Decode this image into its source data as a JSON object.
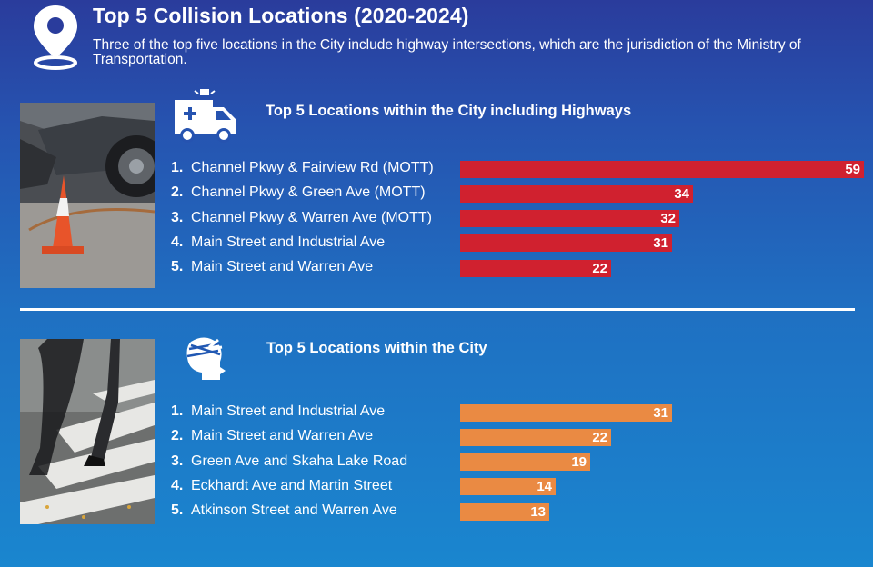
{
  "header": {
    "title": "Top 5 Collision Locations (2020-2024)",
    "subtitle": "Three of the top five locations in the City include highway intersections, which are the jurisdiction of the Ministry of Transportation."
  },
  "icons": {
    "header": "location-pin-icon",
    "section1": "ambulance-icon",
    "section2": "injured-head-icon"
  },
  "colors": {
    "highway_bars": "#d0212f",
    "city_bars": "#ea8a43"
  },
  "chart_data": [
    {
      "type": "bar",
      "orientation": "horizontal",
      "title": "Top 5 Locations within the City including Highways",
      "ranks": [
        "1.",
        "2.",
        "3.",
        "4.",
        "5."
      ],
      "categories": [
        "Channel Pkwy & Fairview Rd (MOTT)",
        "Channel Pkwy & Green Ave (MOTT)",
        "Channel Pkwy & Warren Ave (MOTT)",
        "Main Street and Industrial Ave",
        "Main Street and Warren Ave"
      ],
      "values": [
        59,
        34,
        32,
        31,
        22
      ],
      "data_labels": [
        "59",
        "34",
        "32",
        "31",
        "22"
      ],
      "color": "#d0212f"
    },
    {
      "type": "bar",
      "orientation": "horizontal",
      "title": "Top 5 Locations within the City",
      "ranks": [
        "1.",
        "2.",
        "3.",
        "4.",
        "5."
      ],
      "categories": [
        "Main Street and Industrial Ave",
        "Main Street and Warren Ave",
        "Green Ave and Skaha Lake Road",
        "Eckhardt Ave and Martin Street",
        "Atkinson Street and Warren Ave"
      ],
      "values": [
        31,
        22,
        19,
        14,
        13
      ],
      "data_labels": [
        "31",
        "22",
        "19",
        "14",
        "13"
      ],
      "color": "#ea8a43"
    }
  ]
}
